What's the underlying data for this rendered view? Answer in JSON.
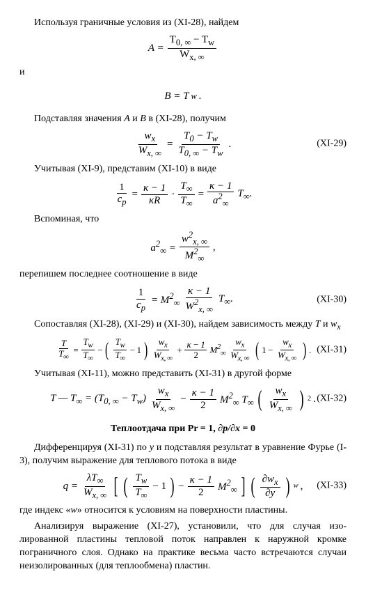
{
  "p1": "Используя граничные условия из (XI-28), найдем",
  "eq1": {
    "lhs": "A =",
    "num": "T<sub>0, ∞</sub> − T<sub>w</sub>",
    "den": "W<sub>x, ∞</sub>"
  },
  "p2": "и",
  "eq2": "B = T<sub>w</sub>.",
  "p3": "Подставляя значения <i>A</i> и <i>B</i> в (XI-28), получим",
  "eq3": {
    "num1": "w<sub>x</sub>",
    "den1": "<span class='ov'>W</span><sub>x, ∞</sub>",
    "eq": " = ",
    "num2": "T<sub>0</sub> − T<sub>w</sub>",
    "den2": "T<sub>0, ∞</sub> − T<sub>w</sub>",
    "tail": ".",
    "ref": "(XI-29)"
  },
  "p4": "Учитывая (XI-9), представим (XI-10) в виде",
  "eq4": {
    "num1": "1",
    "den1": "c<sub>p</sub>",
    "num2": "κ − 1",
    "den2": "κR",
    "mid": " · ",
    "num3": "T<sub>∞</sub>",
    "den3": "T<sub>∞</sub>",
    "eq": " = ",
    "num4": "κ − 1",
    "den4": "a<sup>2</sup><sub>∞</sub>",
    "tail": " T<sub>∞</sub>."
  },
  "p5": "Вспоминая, что",
  "eq5": {
    "lhs": "a<sup>2</sup><sub>∞</sub> = ",
    "num": "w<sup>2</sup><sub>x, ∞</sub>",
    "den": "M<sup>2</sup><sub>∞</sub>",
    "tail": ","
  },
  "p6": "перепишем последнее соотношение в виде",
  "eq6": {
    "num1": "1",
    "den1": "c<sub>p</sub>",
    "eq": " = M<sup>2</sup><sub>∞</sub> ",
    "num2": "κ − 1",
    "den2": "W<sup>2</sup><sub>x, ∞</sub>",
    "tail": " T<sub>∞</sub>.",
    "ref": "(XI-30)"
  },
  "p7": "Сопоставляя (XI-28), (XI-29) и (XI-30), найдем зависимость между <i>T</i> и <i>w<sub>x</sub></i>",
  "eq7": {
    "ref": "(XI-31)"
  },
  "p8": "Учитывая (XI-11), можно представить (XI-31) в другой форме",
  "eq8": {
    "ref": "(XI-32)"
  },
  "heading": "Теплоотдача при Pr = 1, <i>∂p/∂x</i> = 0",
  "p9": "Дифференцируя (XI-31) по <i>y</i> и подставляя результат в уравнение Фурье (I-3), получим выражение для теплового потока в виде",
  "eq9": {
    "ref": "(XI-33)"
  },
  "p10": "где индекс «<i>w</i>» относится к условиям на поверхности пластины.",
  "p11": "Анализируя выражение (XI-27), установили, что для случая изо­лированной пластины тепловой поток направлен к наружной кромке пограничного слоя. Однако на практике весьма часто встречаются случаи неизолированных (для теплообмена) пластин."
}
